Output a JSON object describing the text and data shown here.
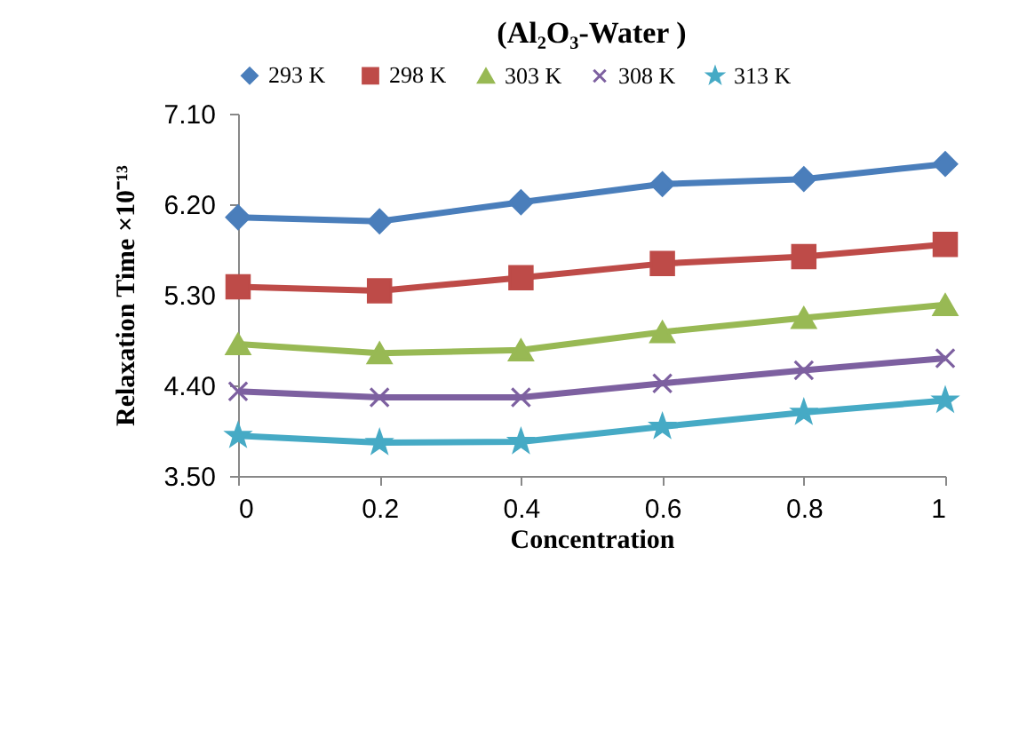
{
  "chart_data": {
    "type": "line",
    "title": "(Al₂O₃-Water )",
    "xlabel": "Concentration",
    "ylabel": "Relaxation Time ×10⁻¹³",
    "x": [
      0,
      0.2,
      0.4,
      0.6,
      0.8,
      1
    ],
    "series": [
      {
        "name": "293  K",
        "color": "#4a7ebb",
        "marker": "diamond",
        "values": [
          6.07,
          6.03,
          6.22,
          6.4,
          6.45,
          6.6
        ]
      },
      {
        "name": "298 K",
        "color": "#be4b48",
        "marker": "square",
        "values": [
          5.38,
          5.34,
          5.47,
          5.61,
          5.68,
          5.8
        ]
      },
      {
        "name": "303 K",
        "color": "#98b954",
        "marker": "triangle",
        "values": [
          4.81,
          4.72,
          4.75,
          4.93,
          5.07,
          5.2
        ]
      },
      {
        "name": "308 K",
        "color": "#7d60a0",
        "marker": "cross",
        "values": [
          4.34,
          4.28,
          4.28,
          4.42,
          4.55,
          4.67
        ]
      },
      {
        "name": "313 K",
        "color": "#46aac5",
        "marker": "star",
        "values": [
          3.9,
          3.83,
          3.84,
          3.99,
          4.13,
          4.25
        ]
      }
    ],
    "xlim": [
      0,
      1
    ],
    "xticks": [
      0,
      0.2,
      0.4,
      0.6,
      0.8,
      1
    ],
    "ylim": [
      3.5,
      7.1
    ],
    "yticks": [
      {
        "value": 3.5,
        "label": "3.50"
      },
      {
        "value": 4.4,
        "label": "4.40"
      },
      {
        "value": 5.3,
        "label": "5.30"
      },
      {
        "value": 6.2,
        "label": "6.20"
      },
      {
        "value": 7.1,
        "label": "7.10"
      }
    ],
    "grid": false,
    "legend": "top",
    "line_style": "solid"
  }
}
